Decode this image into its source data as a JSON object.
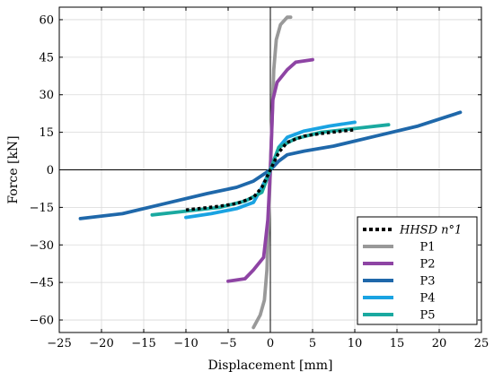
{
  "chart_data": {
    "type": "line",
    "title": "",
    "xlabel": "Displacement [mm]",
    "ylabel": "Force [kN]",
    "xlim": [
      -25,
      25
    ],
    "ylim": [
      -65,
      65
    ],
    "xticks": [
      -25,
      -20,
      -15,
      -10,
      -5,
      0,
      5,
      10,
      15,
      20,
      25
    ],
    "yticks": [
      -60,
      -45,
      -30,
      -15,
      0,
      15,
      30,
      45,
      60
    ],
    "xtick_labels": [
      "−25",
      "−20",
      "−15",
      "−10",
      "−5",
      "0",
      "5",
      "10",
      "15",
      "20",
      "25"
    ],
    "ytick_labels": [
      "−60",
      "−45",
      "−30",
      "−15",
      "0",
      "15",
      "30",
      "45",
      "60"
    ],
    "grid": true,
    "legend_position": "bottom-right",
    "series": [
      {
        "name": "HHSD n°1",
        "color": "#000000",
        "style": "dotted",
        "x": [
          -10,
          -8,
          -6,
          -4,
          -2,
          -1,
          0,
          1,
          2,
          4,
          6,
          8,
          10
        ],
        "y": [
          -16,
          -15.3,
          -14.5,
          -13.5,
          -11,
          -7,
          0,
          7,
          11,
          13.5,
          14.5,
          15.3,
          16
        ]
      },
      {
        "name": "P1",
        "color": "#999999",
        "style": "solid",
        "x": [
          -2,
          -1.2,
          -0.7,
          -0.4,
          -0.2,
          0,
          0.2,
          0.4,
          0.7,
          1.2,
          2,
          2.4
        ],
        "y": [
          -63,
          -58,
          -52,
          -40,
          -20,
          0,
          20,
          40,
          52,
          58,
          61,
          61
        ]
      },
      {
        "name": "P2",
        "color": "#8e44a4",
        "style": "solid",
        "x": [
          -5,
          -3,
          -2,
          -0.8,
          -0.3,
          0,
          0.3,
          0.8,
          2,
          3,
          5
        ],
        "y": [
          -44.5,
          -43.5,
          -40,
          -35,
          -20,
          0,
          28,
          35,
          40,
          43,
          44
        ]
      },
      {
        "name": "P3",
        "color": "#1f68aa",
        "style": "solid",
        "x": [
          -22.5,
          -17.5,
          -12.5,
          -7.5,
          -4,
          -2,
          0,
          1,
          2,
          4,
          7.5,
          12.5,
          17.5,
          22.5
        ],
        "y": [
          -19.5,
          -17.5,
          -13.5,
          -9.5,
          -7,
          -4.5,
          0,
          3.5,
          6,
          7.5,
          9.5,
          13.5,
          17.5,
          23
        ]
      },
      {
        "name": "P4",
        "color": "#1aa3e2",
        "style": "solid",
        "x": [
          -10,
          -7,
          -4,
          -2,
          -1,
          0,
          1,
          2,
          4,
          7,
          10
        ],
        "y": [
          -19,
          -17.5,
          -15.5,
          -13,
          -7,
          0,
          9,
          13,
          15.5,
          17.5,
          19
        ]
      },
      {
        "name": "P5",
        "color": "#1aa9a0",
        "style": "solid",
        "x": [
          -14,
          -10,
          -6,
          -3,
          -1,
          0,
          1,
          3,
          6,
          10,
          14
        ],
        "y": [
          -18,
          -16.5,
          -15,
          -12.5,
          -9,
          0,
          9,
          12.5,
          15,
          16.5,
          18
        ]
      }
    ]
  }
}
